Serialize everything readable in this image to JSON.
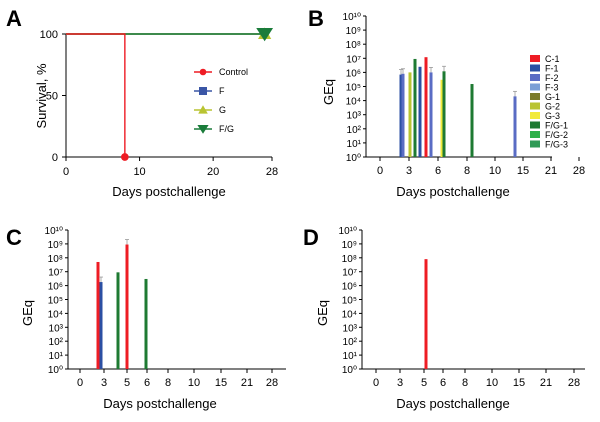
{
  "chart_data": [
    {
      "panel": "A",
      "type": "line",
      "xlabel": "Days postchallenge",
      "ylabel": "Survival, %",
      "xlim": [
        0,
        28
      ],
      "ylim": [
        0,
        100
      ],
      "x_ticks": [
        0,
        10,
        20,
        28
      ],
      "y_ticks": [
        0,
        50,
        100
      ],
      "series": [
        {
          "name": "Control",
          "color": "#ee1c24",
          "marker": "circle",
          "points": [
            [
              0,
              100
            ],
            [
              8,
              100
            ],
            [
              8,
              0
            ]
          ]
        },
        {
          "name": "F",
          "color": "#3a56a6",
          "marker": "square",
          "points": [
            [
              0,
              100
            ],
            [
              27,
              100
            ]
          ]
        },
        {
          "name": "G",
          "color": "#b9c432",
          "marker": "triangle-up",
          "points": [
            [
              0,
              100
            ],
            [
              27,
              100
            ]
          ]
        },
        {
          "name": "F/G",
          "color": "#1a7c3a",
          "marker": "triangle-down",
          "points": [
            [
              0,
              100
            ],
            [
              27,
              100
            ]
          ]
        }
      ],
      "legend_position": "right"
    },
    {
      "panel": "B",
      "type": "bar",
      "xlabel": "Days postchallenge",
      "ylabel": "GEq",
      "yscale": "log",
      "ylim": [
        1,
        10000000000
      ],
      "categories": [
        "0",
        "3",
        "6",
        "8",
        "10",
        "15",
        "21",
        "28"
      ],
      "series": [
        {
          "name": "C-1",
          "color": "#ee1c24"
        },
        {
          "name": "F-1",
          "color": "#2b4fa3"
        },
        {
          "name": "F-2",
          "color": "#5a6cc4"
        },
        {
          "name": "F-3",
          "color": "#7b9fd6"
        },
        {
          "name": "G-1",
          "color": "#7a7a2a"
        },
        {
          "name": "G-2",
          "color": "#b9c432"
        },
        {
          "name": "G-3",
          "color": "#f2ea3a"
        },
        {
          "name": "F/G-1",
          "color": "#1e7a32"
        },
        {
          "name": "F/G-2",
          "color": "#2fb04a"
        },
        {
          "name": "F/G-3",
          "color": "#2e9a55"
        }
      ],
      "bars": [
        {
          "day": 3,
          "series": "F-1",
          "value": 700000,
          "error": true
        },
        {
          "day": 3,
          "series": "F-2",
          "value": 800000,
          "error": true
        },
        {
          "day": 3,
          "series": "G-2",
          "value": 1000000,
          "error": false
        },
        {
          "day": 3,
          "series": "F/G-1",
          "value": 9000000,
          "error": false
        },
        {
          "day": 3,
          "series": "F-1",
          "value": 2500000,
          "error": false
        },
        {
          "day": 3,
          "series": "C-1",
          "value": 12000000,
          "error": false
        },
        {
          "day": 3,
          "series": "F-2",
          "value": 1000000,
          "error": true
        },
        {
          "day": 6,
          "series": "G-3",
          "value": 300000,
          "error": false
        },
        {
          "day": 6,
          "series": "F/G-1",
          "value": 1200000,
          "error": true
        },
        {
          "day": 8,
          "series": "F/G-1",
          "value": 150000,
          "error": false
        },
        {
          "day": 10,
          "series": "F-2",
          "value": 20000,
          "error": true
        }
      ]
    },
    {
      "panel": "C",
      "type": "bar",
      "xlabel": "Days postchallenge",
      "ylabel": "GEq",
      "yscale": "log",
      "ylim": [
        1,
        10000000000
      ],
      "categories": [
        "0",
        "3",
        "5",
        "6",
        "8",
        "10",
        "15",
        "21",
        "28"
      ],
      "bars": [
        {
          "day": 3,
          "series": "C-1",
          "value": 50000000,
          "error": false
        },
        {
          "day": 3,
          "series": "F-1",
          "value": 1800000,
          "error": true
        },
        {
          "day": 3,
          "series": "F/G-1",
          "value": 9000000,
          "error": false
        },
        {
          "day": 5,
          "series": "C-1",
          "value": 900000000,
          "error": true
        },
        {
          "day": 6,
          "series": "F/G-1",
          "value": 3000000,
          "error": false
        }
      ]
    },
    {
      "panel": "D",
      "type": "bar",
      "xlabel": "Days postchallenge",
      "ylabel": "GEq",
      "yscale": "log",
      "ylim": [
        1,
        10000000000
      ],
      "categories": [
        "0",
        "3",
        "5",
        "6",
        "8",
        "10",
        "15",
        "21",
        "28"
      ],
      "bars": [
        {
          "day": 5,
          "series": "C-1",
          "value": 80000000,
          "error": false
        }
      ]
    }
  ]
}
